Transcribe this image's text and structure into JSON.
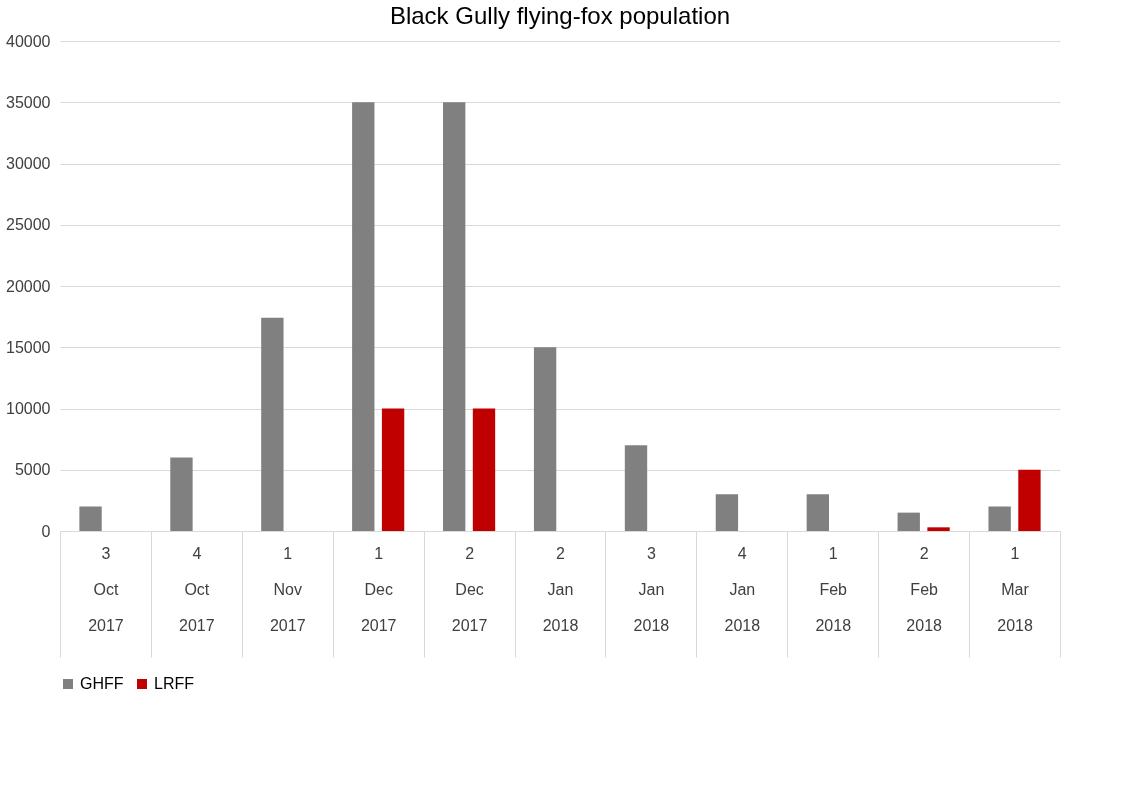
{
  "chart_data": {
    "type": "bar",
    "title": "Black Gully flying-fox population",
    "categories": [
      "3 Oct 2017",
      "4 Oct 2017",
      "1 Nov 2017",
      "1 Dec 2017",
      "2 Dec 2017",
      "2 Jan 2018",
      "3 Jan 2018",
      "4 Jan 2018",
      "1 Feb 2018",
      "2 Feb 2018",
      "1 Mar 2018"
    ],
    "series": [
      {
        "name": "GHFF",
        "color": "#808080",
        "values": [
          2000,
          6000,
          17400,
          35000,
          35000,
          15000,
          7000,
          3000,
          3000,
          1500,
          2000
        ]
      },
      {
        "name": "LRFF",
        "color": "#c00000",
        "values": [
          null,
          null,
          null,
          10000,
          10000,
          null,
          null,
          null,
          null,
          300,
          5000
        ]
      }
    ],
    "ylim": [
      0,
      40000
    ],
    "yticks": [
      0,
      5000,
      10000,
      15000,
      20000,
      25000,
      30000,
      35000,
      40000
    ],
    "grid": "y",
    "legend": "bottom"
  }
}
